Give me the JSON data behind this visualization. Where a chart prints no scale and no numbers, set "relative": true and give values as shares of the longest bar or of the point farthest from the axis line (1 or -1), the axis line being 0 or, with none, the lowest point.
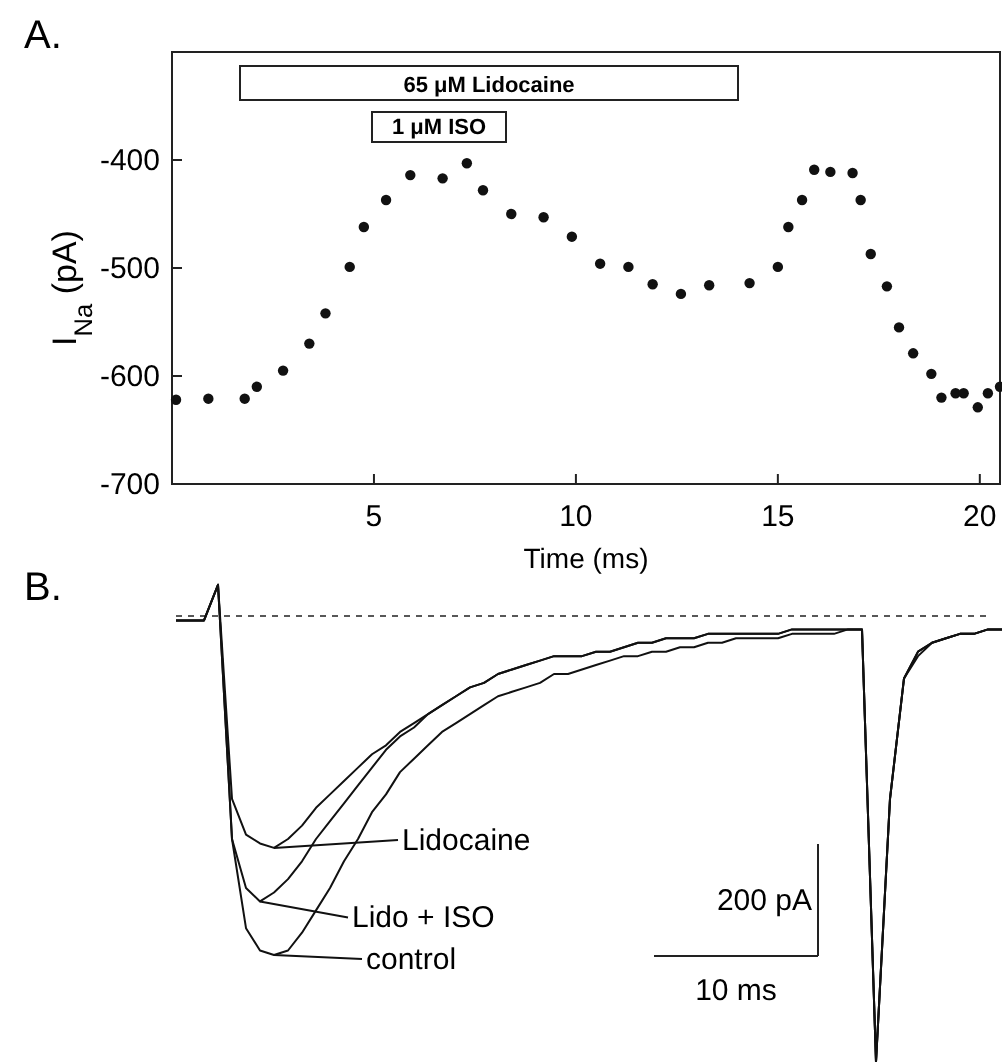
{
  "chart_data": [
    {
      "type": "scatter",
      "title": "A.",
      "xlabel": "Time (ms)",
      "ylabel": "I$_{Na}$ (pA)",
      "marker": "circle",
      "xlim": [
        0,
        20.5
      ],
      "xticks": [
        5,
        10,
        15,
        20
      ],
      "ylim": [
        -700,
        -300
      ],
      "yticks": [
        -400,
        -500,
        -600,
        -700
      ],
      "annotations": [
        "65 μM Lidocaine",
        "1 μM ISO"
      ],
      "series": [
        {
          "color": "#111111",
          "x": [
            0.1,
            0.9,
            1.8,
            2.1,
            2.75,
            3.4,
            3.8,
            4.4,
            4.75,
            5.3,
            5.9,
            6.7,
            7.3,
            7.7,
            8.4,
            9.2,
            9.9,
            10.6,
            11.3,
            11.9,
            12.6,
            13.3,
            14.3,
            15.0,
            15.26,
            15.6,
            15.9,
            16.3,
            16.85,
            17.05,
            17.3,
            17.7,
            18.0,
            18.35,
            18.8,
            19.05,
            19.4,
            19.6,
            19.95,
            20.2,
            20.5
          ],
          "values": [
            -622,
            -621,
            -621,
            -610,
            -595,
            -570,
            -542,
            -499,
            -462,
            -437,
            -414,
            -417,
            -403,
            -428,
            -450,
            -453,
            -471,
            -496,
            -499,
            -515,
            -524,
            -516,
            -514,
            -499,
            -462,
            -437,
            -409,
            -411,
            -412,
            -437,
            -487,
            -517,
            -555,
            -579,
            -598,
            -620,
            -616,
            -616,
            -629,
            -616,
            -610
          ]
        }
      ]
    },
    {
      "type": "line",
      "title": "B.",
      "relative": true,
      "legend": "bottom left",
      "annotations": [
        "200 pA",
        "10 ms"
      ],
      "ref_lines": [
        {
          "axis": "y",
          "value": 0,
          "line_style": "dashed"
        }
      ],
      "categories": [
        null,
        null,
        null,
        null,
        null,
        null,
        null,
        null,
        null,
        null,
        null,
        null,
        null,
        null,
        null,
        null,
        null,
        null,
        null,
        null,
        null,
        null,
        null,
        null,
        null,
        null,
        null,
        null,
        null,
        null,
        null,
        null,
        null,
        null,
        null,
        null,
        null,
        null,
        null,
        null,
        null,
        null,
        null,
        null,
        null,
        null,
        null,
        null,
        null,
        null,
        null,
        null,
        null,
        null,
        null,
        null,
        null,
        null,
        null,
        null
      ],
      "series": [
        {
          "name": "Lidocaine",
          "color": "#111111",
          "values": [
            -0.01,
            -0.01,
            -0.01,
            0.07,
            -0.41,
            -0.49,
            -0.51,
            -0.52,
            -0.5,
            -0.47,
            -0.43,
            -0.4,
            -0.37,
            -0.34,
            -0.31,
            -0.29,
            -0.26,
            -0.24,
            -0.22,
            -0.2,
            -0.18,
            -0.16,
            -0.15,
            -0.13,
            -0.12,
            -0.11,
            -0.1,
            -0.09,
            -0.09,
            -0.09,
            -0.08,
            -0.08,
            -0.07,
            -0.06,
            -0.06,
            -0.05,
            -0.05,
            -0.05,
            -0.04,
            -0.04,
            -0.04,
            -0.04,
            -0.04,
            -0.04,
            -0.03,
            -0.03,
            -0.03,
            -0.03,
            -0.03,
            -0.03,
            -1,
            -0.41,
            -0.14,
            -0.08,
            -0.06,
            -0.05,
            -0.04,
            -0.04,
            -0.03,
            -0.03
          ]
        },
        {
          "name": "Lido + ISO",
          "color": "#111111",
          "values": [
            -0.01,
            -0.01,
            -0.01,
            0.07,
            -0.5,
            -0.61,
            -0.64,
            -0.62,
            -0.59,
            -0.55,
            -0.5,
            -0.46,
            -0.42,
            -0.38,
            -0.34,
            -0.3,
            -0.27,
            -0.25,
            -0.22,
            -0.2,
            -0.18,
            -0.16,
            -0.15,
            -0.13,
            -0.12,
            -0.11,
            -0.1,
            -0.09,
            -0.09,
            -0.09,
            -0.08,
            -0.08,
            -0.07,
            -0.06,
            -0.06,
            -0.05,
            -0.05,
            -0.05,
            -0.04,
            -0.04,
            -0.04,
            -0.04,
            -0.04,
            -0.04,
            -0.03,
            -0.03,
            -0.03,
            -0.03,
            -0.03,
            -0.03,
            -1,
            -0.41,
            -0.14,
            -0.08,
            -0.06,
            -0.05,
            -0.04,
            -0.04,
            -0.03,
            -0.03
          ]
        },
        {
          "name": "control",
          "color": "#111111",
          "values": [
            -0.01,
            -0.01,
            -0.01,
            0.07,
            -0.5,
            -0.7,
            -0.75,
            -0.76,
            -0.75,
            -0.71,
            -0.66,
            -0.61,
            -0.55,
            -0.5,
            -0.44,
            -0.4,
            -0.35,
            -0.32,
            -0.29,
            -0.26,
            -0.24,
            -0.22,
            -0.2,
            -0.18,
            -0.17,
            -0.16,
            -0.15,
            -0.13,
            -0.13,
            -0.12,
            -0.11,
            -0.1,
            -0.09,
            -0.09,
            -0.08,
            -0.08,
            -0.07,
            -0.07,
            -0.06,
            -0.06,
            -0.05,
            -0.05,
            -0.05,
            -0.05,
            -0.04,
            -0.04,
            -0.04,
            -0.04,
            -0.03,
            -0.03,
            -1,
            -0.41,
            -0.14,
            -0.09,
            -0.06,
            -0.05,
            -0.04,
            -0.04,
            -0.03,
            -0.03
          ]
        }
      ]
    }
  ]
}
